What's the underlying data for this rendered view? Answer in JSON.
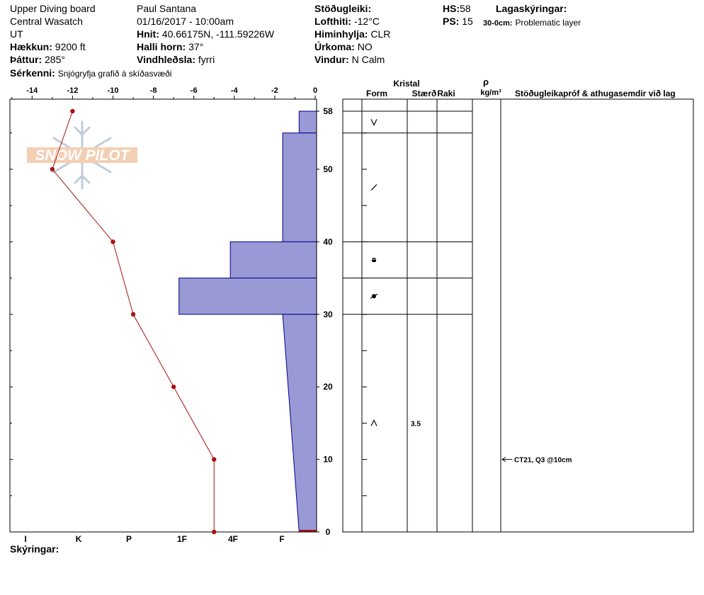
{
  "header": {
    "site": "Upper Diving board",
    "region": "Central Wasatch",
    "state": "UT",
    "elevation_label": "Hækkun:",
    "elevation": "9200 ft",
    "aspect_label": "Þáttur:",
    "aspect": "285°",
    "observer": "Paul Santana",
    "datetime": "01/16/2017 - 10:00am",
    "coords_label": "Hnit:",
    "coords": "40.66175N, -111.59226W",
    "slope_label": "Halli horn:",
    "slope": "37°",
    "wind_loading_label": "Vindhleðsla:",
    "wind_loading": "fyrri",
    "stability_label": "Stöðugleiki:",
    "stability": "",
    "air_temp_label": "Lofthiti:",
    "air_temp": "-12°C",
    "sky_label": "Himinhylja:",
    "sky": "CLR",
    "precip_label": "Úrkoma:",
    "precip": "NO",
    "wind_label": "Vindur:",
    "wind": "N Calm",
    "hs_label": "HS:",
    "hs": "58",
    "ps_label": "PS:",
    "ps": "15",
    "layer_notes_label": "Lagaskýringar:",
    "layer_note_range": "30-0cm:",
    "layer_note_text": "Problematic layer",
    "features_label": "Sérkenni:",
    "features": "Snjógryfja grafið á skíðasvæði",
    "notes_label": "Skýringar:"
  },
  "logo": {
    "text": "SNOW PILOT"
  },
  "columns": {
    "crystal_title": "Kristal",
    "form": "Form",
    "size": "Stærð",
    "moisture": "Raki",
    "density_symbol": "ρ",
    "density_unit": "kg/m³",
    "tests": "Stöðugleikapróf & athugasemdir við lag"
  },
  "chart_data": {
    "type": "snow_profile",
    "depth_range": [
      0,
      58
    ],
    "depth_ticks": [
      0,
      10,
      20,
      30,
      40,
      50,
      58
    ],
    "temp_axis": {
      "range": [
        -15,
        0
      ],
      "ticks": [
        -14,
        -12,
        -10,
        -8,
        -6,
        -4,
        -2,
        0
      ]
    },
    "hardness_axis": {
      "labels": [
        "I",
        "K",
        "P",
        "1F",
        "4F",
        "F"
      ]
    },
    "temperature_profile": [
      {
        "depth": 58,
        "temp": -12
      },
      {
        "depth": 50,
        "temp": -13
      },
      {
        "depth": 40,
        "temp": -10
      },
      {
        "depth": 30,
        "temp": -9
      },
      {
        "depth": 20,
        "temp": -7
      },
      {
        "depth": 10,
        "temp": -5
      },
      {
        "depth": 0,
        "temp": -5
      }
    ],
    "hardness_profile": [
      {
        "top": 58,
        "bottom": 55,
        "hardness": 0.85
      },
      {
        "top": 55,
        "bottom": 40,
        "hardness": 1.65
      },
      {
        "top": 40,
        "bottom": 35,
        "hardness": 4.2
      },
      {
        "top": 35,
        "bottom": 30,
        "hardness": 6.7
      },
      {
        "top": 30,
        "bottom": 0,
        "hardness_top": 1.65,
        "hardness_bottom": 0.85
      }
    ],
    "layer_boundaries": [
      58,
      55,
      40,
      35,
      30,
      0
    ],
    "grain_symbols": [
      {
        "depth": 56.5,
        "symbol": "depth-hoar"
      },
      {
        "depth": 47.5,
        "symbol": "decomposing"
      },
      {
        "depth": 37.5,
        "symbol": "melt-freeze"
      },
      {
        "depth": 32.5,
        "symbol": "rounding-faceted"
      },
      {
        "depth": 15,
        "symbol": "faceted"
      }
    ],
    "grain_sizes": [
      {
        "depth": 15,
        "size": "3.5"
      }
    ],
    "stability_tests": [
      {
        "depth": 10,
        "text": "CT21, Q3 @10cm"
      }
    ],
    "colors": {
      "hardness_fill": "#9999d6",
      "hardness_edge": "#00008b",
      "temperature": "#aa1111"
    }
  }
}
